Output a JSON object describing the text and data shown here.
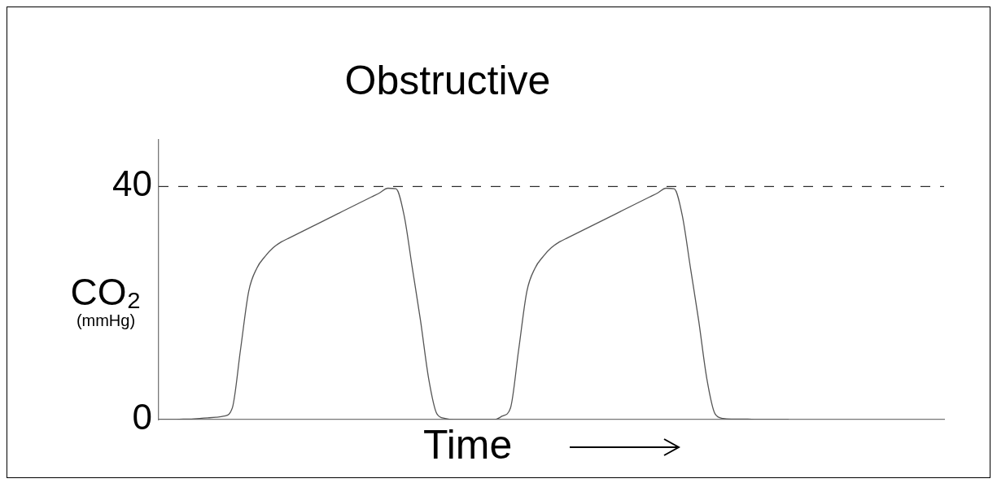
{
  "chart_data": {
    "type": "line",
    "title": "Obstructive",
    "xlabel": "Time",
    "ylabel": "CO₂ (mmHg)",
    "categories": [
      null,
      null,
      null,
      null,
      null,
      null,
      null,
      null,
      null,
      null,
      null,
      null,
      null,
      null,
      null,
      null,
      null,
      null,
      null,
      null,
      null,
      null,
      null,
      null,
      null,
      null,
      null,
      null,
      null,
      null,
      null,
      null,
      null,
      null,
      null,
      null,
      null,
      null,
      null,
      null,
      null,
      null,
      null,
      null,
      null,
      null,
      null,
      null,
      null,
      null,
      null,
      null,
      null,
      null,
      null,
      null,
      null,
      null,
      null,
      null,
      null,
      null,
      null,
      null,
      null,
      null,
      null,
      null,
      null,
      null,
      null,
      null,
      null,
      null,
      null,
      null,
      null,
      null,
      null,
      null,
      null,
      null,
      null,
      null,
      null,
      null,
      null,
      null,
      null,
      null,
      null,
      null,
      null,
      null,
      null,
      null,
      null
    ],
    "series": [
      {
        "color": "#555555",
        "values": [
          0,
          0,
          0,
          0.1,
          0.1,
          0.2,
          0.3,
          0.4,
          0.6,
          2,
          12,
          22,
          26,
          28,
          29.5,
          30.5,
          31.2,
          31.9,
          32.6,
          33.3,
          34,
          34.7,
          35.4,
          36.1,
          36.8,
          37.5,
          38.2,
          38.9,
          39.7,
          39.6,
          35,
          26,
          17,
          7,
          1,
          0.2,
          0,
          0,
          0,
          0,
          0,
          0,
          0.6,
          2,
          12,
          22,
          26,
          28,
          29.5,
          30.5,
          31.2,
          31.9,
          32.6,
          33.3,
          34,
          34.7,
          35.4,
          36.1,
          36.8,
          37.5,
          38.2,
          38.9,
          39.7,
          39.6,
          35,
          26,
          17,
          7,
          1,
          0.2,
          0.1,
          0.1,
          0.1,
          0,
          0,
          0,
          0,
          0,
          null,
          null,
          null,
          null,
          null,
          null,
          null,
          null,
          null,
          null,
          null,
          null,
          null,
          null,
          null,
          null,
          null,
          null,
          null
        ]
      }
    ],
    "ylim": [
      0,
      48
    ],
    "yticks": [
      0,
      40
    ],
    "grid": false,
    "legend": false,
    "marker": "none",
    "line_style": "solid",
    "tick_labels": "y",
    "ref_lines": [
      {
        "axis": "y",
        "value": 40,
        "color": "#000000",
        "line_style": "dashed"
      }
    ]
  }
}
